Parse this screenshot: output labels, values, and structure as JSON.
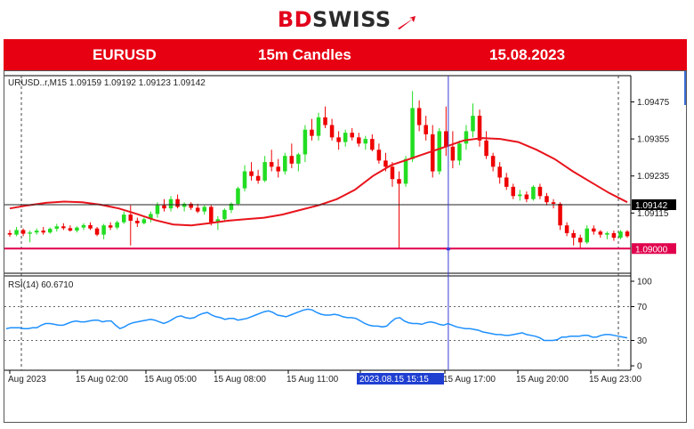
{
  "brand": {
    "bd": "BD",
    "swiss": "SWISS"
  },
  "banner": {
    "symbol": "EURUSD",
    "timeframe": "15m Candles",
    "date": "15.08.2023"
  },
  "colors": {
    "accent": "#e60012",
    "bull": "#22dd22",
    "bear": "#ee0000",
    "ma": "#e8141c",
    "rsi": "#1e90ff",
    "support": "#e0004d"
  },
  "chart_data": [
    {
      "type": "candlestick",
      "info": "URUSD..r,M15  1.09159 1.09192 1.09123 1.09142",
      "ylim": [
        1.0892,
        1.0956
      ],
      "y_ticks": [
        "1.09475",
        "1.09355",
        "1.09235",
        "1.09115"
      ],
      "price_tag": "1.09142",
      "price_level": 1.09142,
      "support_tag": "1.09000",
      "support_level": 1.09,
      "x_ticks": [
        "Aug 2023",
        "15 Aug 02:00",
        "15 Aug 05:00",
        "15 Aug 08:00",
        "15 Aug 11:00",
        "2023.08.15 15:15",
        "15 Aug 17:00",
        "15 Aug 20:00",
        "15 Aug 23:00"
      ],
      "cursor_index": 66,
      "candles": [
        [
          1.0905,
          1.0906,
          1.09038,
          1.09045
        ],
        [
          1.09045,
          1.0907,
          1.0904,
          1.0906
        ],
        [
          1.0906,
          1.09065,
          1.0904,
          1.09048
        ],
        [
          1.09048,
          1.09058,
          1.0902,
          1.09052
        ],
        [
          1.09052,
          1.09065,
          1.09045,
          1.09058
        ],
        [
          1.09058,
          1.0907,
          1.09045,
          1.09052
        ],
        [
          1.09052,
          1.09068,
          1.09048,
          1.09064
        ],
        [
          1.09064,
          1.0908,
          1.09055,
          1.09072
        ],
        [
          1.09072,
          1.09082,
          1.0906,
          1.09066
        ],
        [
          1.09066,
          1.09075,
          1.09055,
          1.09058
        ],
        [
          1.09058,
          1.09072,
          1.09052,
          1.09068
        ],
        [
          1.09068,
          1.09082,
          1.0906,
          1.09076
        ],
        [
          1.09076,
          1.09085,
          1.0906,
          1.09065
        ],
        [
          1.09065,
          1.0907,
          1.0904,
          1.09045
        ],
        [
          1.09045,
          1.0908,
          1.0903,
          1.09075
        ],
        [
          1.09075,
          1.09085,
          1.0906,
          1.09068
        ],
        [
          1.09068,
          1.0909,
          1.09062,
          1.09085
        ],
        [
          1.09085,
          1.0912,
          1.0908,
          1.0911
        ],
        [
          1.0911,
          1.0914,
          1.0901,
          1.0909
        ],
        [
          1.0909,
          1.091,
          1.0907,
          1.09082
        ],
        [
          1.09082,
          1.091,
          1.09078,
          1.09095
        ],
        [
          1.09095,
          1.0912,
          1.09085,
          1.09112
        ],
        [
          1.09112,
          1.0915,
          1.091,
          1.0914
        ],
        [
          1.0914,
          1.0916,
          1.0912,
          1.0913
        ],
        [
          1.0913,
          1.0917,
          1.0912,
          1.0916
        ],
        [
          1.0916,
          1.09175,
          1.0913,
          1.09135
        ],
        [
          1.09135,
          1.0915,
          1.0912,
          1.09145
        ],
        [
          1.09145,
          1.0915,
          1.09125,
          1.09132
        ],
        [
          1.09132,
          1.09145,
          1.09115,
          1.0912
        ],
        [
          1.0912,
          1.0914,
          1.0911,
          1.09135
        ],
        [
          1.09135,
          1.0914,
          1.09075,
          1.09085
        ],
        [
          1.09085,
          1.09105,
          1.0906,
          1.09095
        ],
        [
          1.09095,
          1.0913,
          1.0909,
          1.09125
        ],
        [
          1.09125,
          1.0915,
          1.09115,
          1.09145
        ],
        [
          1.09145,
          1.092,
          1.0914,
          1.09195
        ],
        [
          1.09195,
          1.0927,
          1.09185,
          1.0925
        ],
        [
          1.0925,
          1.0928,
          1.0922,
          1.09235
        ],
        [
          1.09235,
          1.09255,
          1.0921,
          1.0922
        ],
        [
          1.0922,
          1.093,
          1.09215,
          1.0928
        ],
        [
          1.0928,
          1.0932,
          1.0925,
          1.09265
        ],
        [
          1.09265,
          1.0929,
          1.0923,
          1.0925
        ],
        [
          1.0925,
          1.0931,
          1.0924,
          1.093
        ],
        [
          1.093,
          1.0934,
          1.0926,
          1.09275
        ],
        [
          1.09275,
          1.0931,
          1.0925,
          1.09305
        ],
        [
          1.09305,
          1.094,
          1.0928,
          1.09385
        ],
        [
          1.09385,
          1.0942,
          1.0935,
          1.09365
        ],
        [
          1.09365,
          1.0944,
          1.0935,
          1.09425
        ],
        [
          1.09425,
          1.0946,
          1.0939,
          1.094
        ],
        [
          1.094,
          1.0942,
          1.0935,
          1.0936
        ],
        [
          1.0936,
          1.0938,
          1.0932,
          1.09345
        ],
        [
          1.09345,
          1.09385,
          1.0933,
          1.09375
        ],
        [
          1.09375,
          1.0939,
          1.0935,
          1.0936
        ],
        [
          1.0936,
          1.09375,
          1.0933,
          1.0934
        ],
        [
          1.0934,
          1.09365,
          1.0932,
          1.09355
        ],
        [
          1.09355,
          1.0937,
          1.09315,
          1.0932
        ],
        [
          1.0932,
          1.0934,
          1.09275,
          1.09285
        ],
        [
          1.09285,
          1.0931,
          1.0925,
          1.09265
        ],
        [
          1.09265,
          1.0928,
          1.092,
          1.09225
        ],
        [
          1.09225,
          1.0925,
          1.09,
          1.0921
        ],
        [
          1.0921,
          1.093,
          1.092,
          1.0929
        ],
        [
          1.0929,
          1.0951,
          1.0928,
          1.09455
        ],
        [
          1.09455,
          1.0948,
          1.0938,
          1.094
        ],
        [
          1.094,
          1.0943,
          1.0935,
          1.0937
        ],
        [
          1.0937,
          1.094,
          1.0923,
          1.0925
        ],
        [
          1.0925,
          1.0939,
          1.0924,
          1.0938
        ],
        [
          1.0938,
          1.0946,
          1.093,
          1.0933
        ],
        [
          1.0933,
          1.0938,
          1.0926,
          1.09285
        ],
        [
          1.09285,
          1.0935,
          1.0927,
          1.0934
        ],
        [
          1.0934,
          1.094,
          1.0932,
          1.0938
        ],
        [
          1.0938,
          1.0947,
          1.0936,
          1.0943
        ],
        [
          1.0943,
          1.0945,
          1.0933,
          1.0935
        ],
        [
          1.0935,
          1.0938,
          1.0929,
          1.093
        ],
        [
          1.093,
          1.0931,
          1.0925,
          1.09265
        ],
        [
          1.09265,
          1.0928,
          1.0921,
          1.0923
        ],
        [
          1.0923,
          1.09245,
          1.0919,
          1.092
        ],
        [
          1.092,
          1.0921,
          1.0916,
          1.0917
        ],
        [
          1.0917,
          1.0919,
          1.09155,
          1.09175
        ],
        [
          1.09175,
          1.09185,
          1.0915,
          1.0916
        ],
        [
          1.0916,
          1.09205,
          1.09155,
          1.092
        ],
        [
          1.092,
          1.0921,
          1.0916,
          1.0917
        ],
        [
          1.0917,
          1.0918,
          1.0914,
          1.0915
        ],
        [
          1.0915,
          1.0916,
          1.0913,
          1.09145
        ],
        [
          1.09145,
          1.0915,
          1.0906,
          1.09075
        ],
        [
          1.09075,
          1.09085,
          1.0904,
          1.0905
        ],
        [
          1.0905,
          1.0906,
          1.0901,
          1.09035
        ],
        [
          1.09035,
          1.09045,
          1.09,
          1.0902
        ],
        [
          1.0902,
          1.09075,
          1.09015,
          1.09065
        ],
        [
          1.09065,
          1.09075,
          1.09045,
          1.09055
        ],
        [
          1.09055,
          1.0906,
          1.09035,
          1.09045
        ],
        [
          1.09045,
          1.09055,
          1.0903,
          1.0905
        ],
        [
          1.0905,
          1.09058,
          1.09025,
          1.09035
        ],
        [
          1.09035,
          1.0906,
          1.0903,
          1.09055
        ],
        [
          1.09055,
          1.0906,
          1.09035,
          1.0904
        ]
      ],
      "ma_series": [
        1.0913,
        1.0914,
        1.09148,
        1.09152,
        1.0915,
        1.09142,
        1.0913,
        1.09112,
        1.09092,
        1.09078,
        1.09075,
        1.09082,
        1.0909,
        1.09095,
        1.091,
        1.0911,
        1.09125,
        1.0914,
        1.0916,
        1.0919,
        1.09235,
        1.0927,
        1.0929,
        1.0931,
        1.0933,
        1.0935,
        1.09358,
        1.09355,
        1.09345,
        1.0932,
        1.0929,
        1.0925,
        1.09215,
        1.0918,
        1.0915
      ]
    },
    {
      "type": "line",
      "info": "RSI(14) 60.6710",
      "ylim": [
        0,
        100
      ],
      "y_ticks": [
        "100",
        "70",
        "30",
        "0"
      ],
      "levels": [
        70,
        30
      ],
      "values": [
        44,
        45,
        45,
        45,
        44,
        44,
        45,
        45,
        48,
        50,
        50,
        49,
        48,
        48,
        50,
        52,
        53,
        52,
        52,
        53,
        54,
        54,
        52,
        53,
        53,
        48,
        44,
        46,
        49,
        51,
        52,
        53,
        54,
        55,
        54,
        52,
        50,
        52,
        55,
        58,
        59,
        57,
        56,
        57,
        60,
        62,
        63,
        60,
        58,
        57,
        55,
        56,
        56,
        54,
        55,
        56,
        58,
        60,
        62,
        64,
        65,
        63,
        60,
        59,
        58,
        60,
        62,
        64,
        66,
        67,
        66,
        63,
        61,
        60,
        60,
        61,
        60,
        58,
        57,
        57,
        56,
        53,
        50,
        48,
        47,
        47,
        46,
        47,
        52,
        56,
        57,
        53,
        51,
        50,
        50,
        49,
        51,
        52,
        51,
        49,
        48,
        50,
        48,
        46,
        45,
        44,
        44,
        43,
        42,
        40,
        39,
        38,
        37,
        37,
        36,
        36,
        37,
        38,
        39,
        37,
        36,
        35,
        33,
        30,
        30,
        30,
        31,
        34,
        34,
        35,
        35,
        35,
        36,
        36,
        34,
        34,
        36,
        37,
        37,
        36,
        35,
        34,
        33
      ]
    }
  ]
}
